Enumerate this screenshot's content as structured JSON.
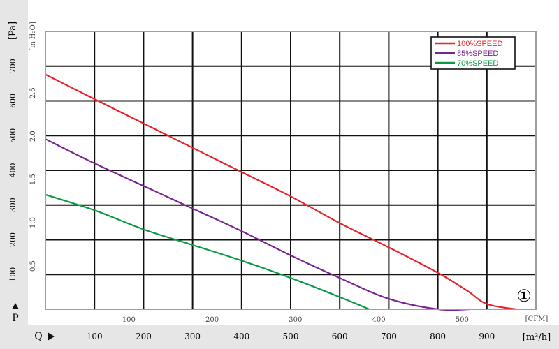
{
  "chart_data": {
    "type": "line",
    "title": "",
    "y_unit_pa": "[Pa]",
    "y_unit_inh2o": "[in H₂O]",
    "x_unit_m3h": "[m³/h]",
    "x_unit_cfm": "[CFM]",
    "p_label": "P",
    "q_label": "Q",
    "badge": "①",
    "pa_ticks": [
      "100",
      "200",
      "300",
      "400",
      "500",
      "600",
      "700"
    ],
    "inh2o_ticks": [
      "0.5",
      "1.0",
      "1.5",
      "2.0",
      "2.5"
    ],
    "m3h_ticks": [
      "100",
      "200",
      "300",
      "400",
      "500",
      "600",
      "700",
      "800",
      "900"
    ],
    "cfm_ticks": [
      "100",
      "200",
      "300",
      "400",
      "500"
    ],
    "xlim": [
      0,
      1000
    ],
    "ylim": [
      0,
      800
    ],
    "legend_position": "top-right",
    "grid": true,
    "series": [
      {
        "name": "100%SPEED",
        "color": "#e8232a",
        "x": [
          0,
          100,
          200,
          300,
          400,
          500,
          600,
          700,
          800,
          860,
          900,
          960
        ],
        "y": [
          676,
          605,
          535,
          465,
          395,
          325,
          248,
          178,
          105,
          53,
          15,
          0
        ]
      },
      {
        "name": "85%SPEED",
        "color": "#7a2590",
        "x": [
          0,
          100,
          200,
          300,
          400,
          500,
          600,
          700,
          800,
          865
        ],
        "y": [
          490,
          420,
          355,
          290,
          225,
          155,
          90,
          30,
          0,
          0
        ]
      },
      {
        "name": "70%SPEED",
        "color": "#0a9a45",
        "x": [
          0,
          100,
          200,
          300,
          400,
          500,
          600,
          660
        ],
        "y": [
          330,
          285,
          230,
          185,
          140,
          90,
          35,
          0
        ]
      }
    ]
  }
}
